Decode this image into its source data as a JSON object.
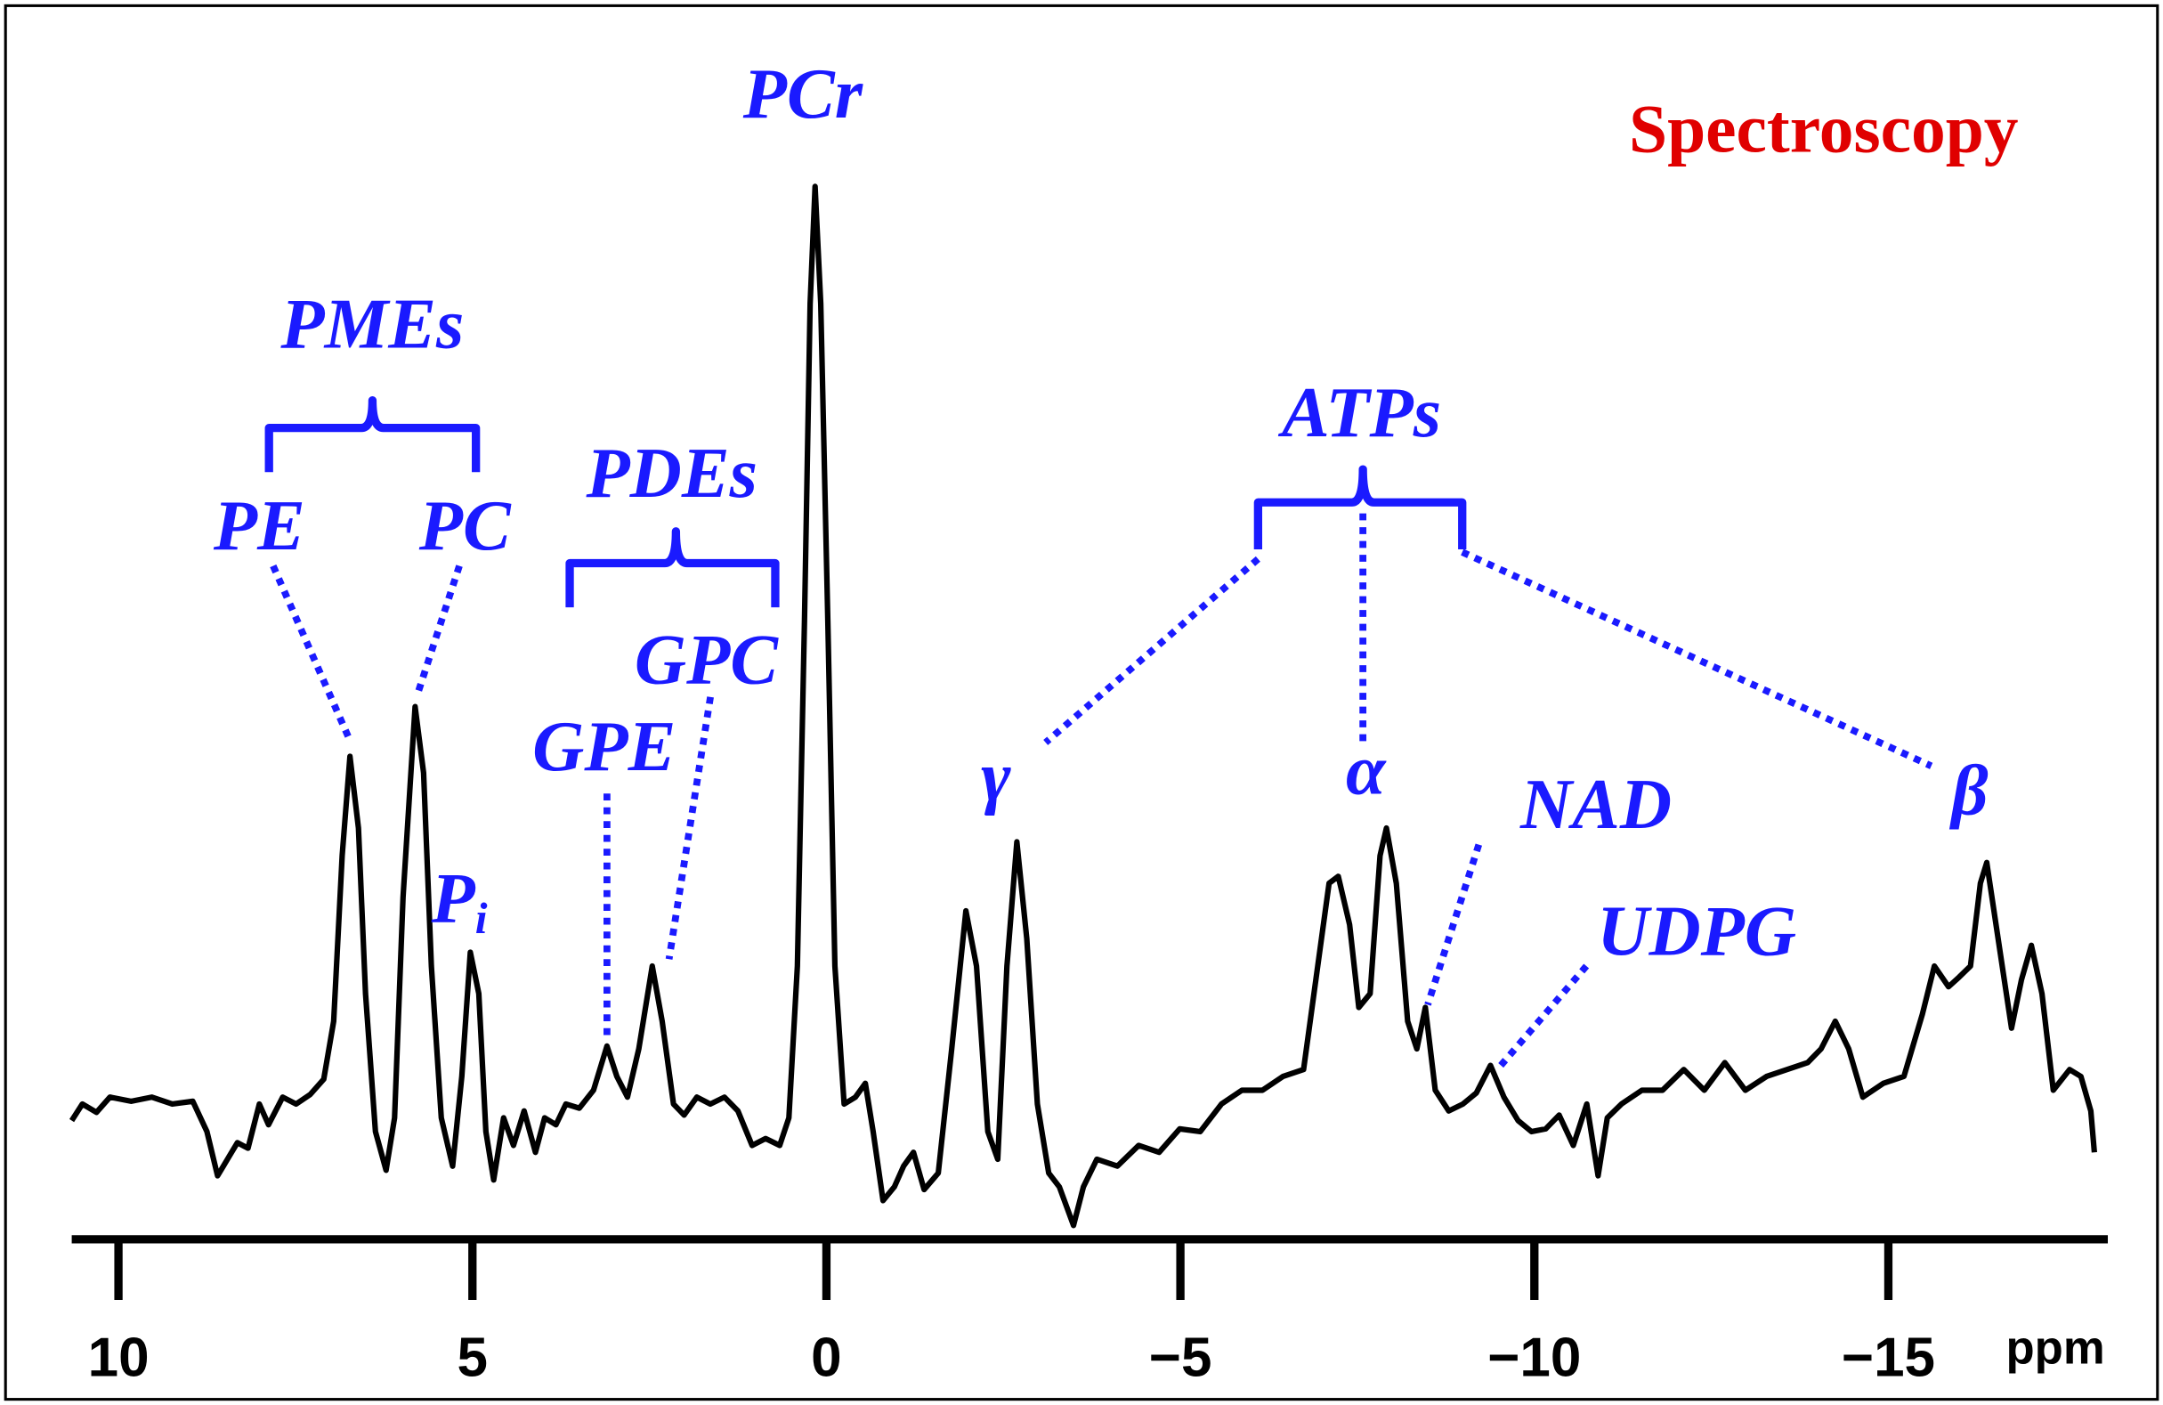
{
  "chart_data": {
    "type": "line",
    "title": "Spectroscopy",
    "x_label": "ppm",
    "color": "#000000",
    "label_color": "#1a1aff",
    "title_color": "#e00000",
    "xlim": [
      10.66,
      -18.1
    ],
    "ylim": [
      -78,
      753
    ],
    "xticks": [
      10,
      5,
      0,
      {
        "value": -5,
        "label": "−5"
      },
      {
        "value": -10,
        "label": "−10"
      },
      {
        "value": -15,
        "label": "−15"
      }
    ],
    "x": [
      10.66,
      10.51,
      10.31,
      10.12,
      9.82,
      9.53,
      9.24,
      8.95,
      8.75,
      8.6,
      8.46,
      8.32,
      8.17,
      8.01,
      7.88,
      7.68,
      7.49,
      7.29,
      7.1,
      6.96,
      6.84,
      6.73,
      6.61,
      6.51,
      6.37,
      6.22,
      6.1,
      5.98,
      5.81,
      5.69,
      5.58,
      5.44,
      5.28,
      5.15,
      5.03,
      4.91,
      4.81,
      4.7,
      4.56,
      4.42,
      4.27,
      4.11,
      3.98,
      3.82,
      3.68,
      3.49,
      3.29,
      3.1,
      2.96,
      2.81,
      2.65,
      2.46,
      2.32,
      2.16,
      2.01,
      1.83,
      1.64,
      1.44,
      1.25,
      1.05,
      0.86,
      0.66,
      0.53,
      0.41,
      0.31,
      0.23,
      0.16,
      0.08,
      -0.02,
      -0.12,
      -0.25,
      -0.41,
      -0.55,
      -0.66,
      -0.8,
      -0.96,
      -1.09,
      -1.23,
      -1.38,
      -1.58,
      -1.77,
      -1.97,
      -2.12,
      -2.28,
      -2.42,
      -2.55,
      -2.69,
      -2.83,
      -2.98,
      -3.14,
      -3.29,
      -3.49,
      -3.63,
      -3.82,
      -4.11,
      -4.41,
      -4.7,
      -4.99,
      -5.28,
      -5.58,
      -5.87,
      -6.16,
      -6.45,
      -6.74,
      -6.94,
      -7.1,
      -7.23,
      -7.39,
      -7.52,
      -7.68,
      -7.82,
      -7.91,
      -8.05,
      -8.21,
      -8.34,
      -8.46,
      -8.6,
      -8.79,
      -8.99,
      -9.18,
      -9.38,
      -9.57,
      -9.77,
      -9.96,
      -10.16,
      -10.35,
      -10.55,
      -10.74,
      -10.9,
      -11.03,
      -11.23,
      -11.52,
      -11.81,
      -12.11,
      -12.4,
      -12.69,
      -12.98,
      -13.28,
      -13.57,
      -13.86,
      -14.05,
      -14.25,
      -14.44,
      -14.64,
      -14.93,
      -15.22,
      -15.48,
      -15.65,
      -15.85,
      -16.0,
      -16.16,
      -16.3,
      -16.39,
      -16.55,
      -16.74,
      -16.88,
      -17.02,
      -17.17,
      -17.33,
      -17.56,
      -17.72,
      -17.86,
      -17.91
    ],
    "values": [
      8,
      20,
      14,
      25,
      22,
      25,
      20,
      22,
      0,
      -32,
      -20,
      -8,
      -12,
      20,
      5,
      25,
      20,
      27,
      38,
      80,
      200,
      272,
      220,
      100,
      0,
      -28,
      10,
      170,
      308,
      260,
      120,
      10,
      -25,
      40,
      130,
      100,
      0,
      -35,
      10,
      -10,
      15,
      -15,
      10,
      5,
      20,
      17,
      30,
      62,
      40,
      25,
      60,
      120,
      80,
      20,
      12,
      25,
      20,
      25,
      15,
      -10,
      -5,
      -10,
      10,
      120,
      370,
      600,
      685,
      600,
      370,
      120,
      20,
      25,
      35,
      0,
      -50,
      -40,
      -25,
      -15,
      -42,
      -30,
      60,
      160,
      120,
      0,
      -20,
      120,
      210,
      140,
      20,
      -30,
      -40,
      -68,
      -40,
      -20,
      -25,
      -10,
      -15,
      2,
      0,
      20,
      30,
      30,
      40,
      45,
      120,
      180,
      185,
      150,
      90,
      100,
      200,
      220,
      180,
      80,
      60,
      90,
      30,
      15,
      20,
      28,
      48,
      25,
      8,
      0,
      2,
      12,
      -10,
      20,
      -32,
      10,
      20,
      30,
      30,
      45,
      30,
      50,
      30,
      40,
      45,
      50,
      60,
      80,
      60,
      25,
      35,
      40,
      85,
      120,
      105,
      112,
      120,
      180,
      195,
      140,
      75,
      110,
      135,
      100,
      30,
      45,
      40,
      15,
      -15
    ],
    "annotations": [
      {
        "text": "PCr"
      },
      {
        "text": "PMEs"
      },
      {
        "text": "PE"
      },
      {
        "text": "PC"
      },
      {
        "text": "P",
        "subscript": "i"
      },
      {
        "text": "PDEs"
      },
      {
        "text": "GPC"
      },
      {
        "text": "GPE"
      },
      {
        "text": "ATPs"
      },
      {
        "text": "γ"
      },
      {
        "text": "α"
      },
      {
        "text": "NAD"
      },
      {
        "text": "UDPG"
      },
      {
        "text": "β"
      }
    ]
  }
}
